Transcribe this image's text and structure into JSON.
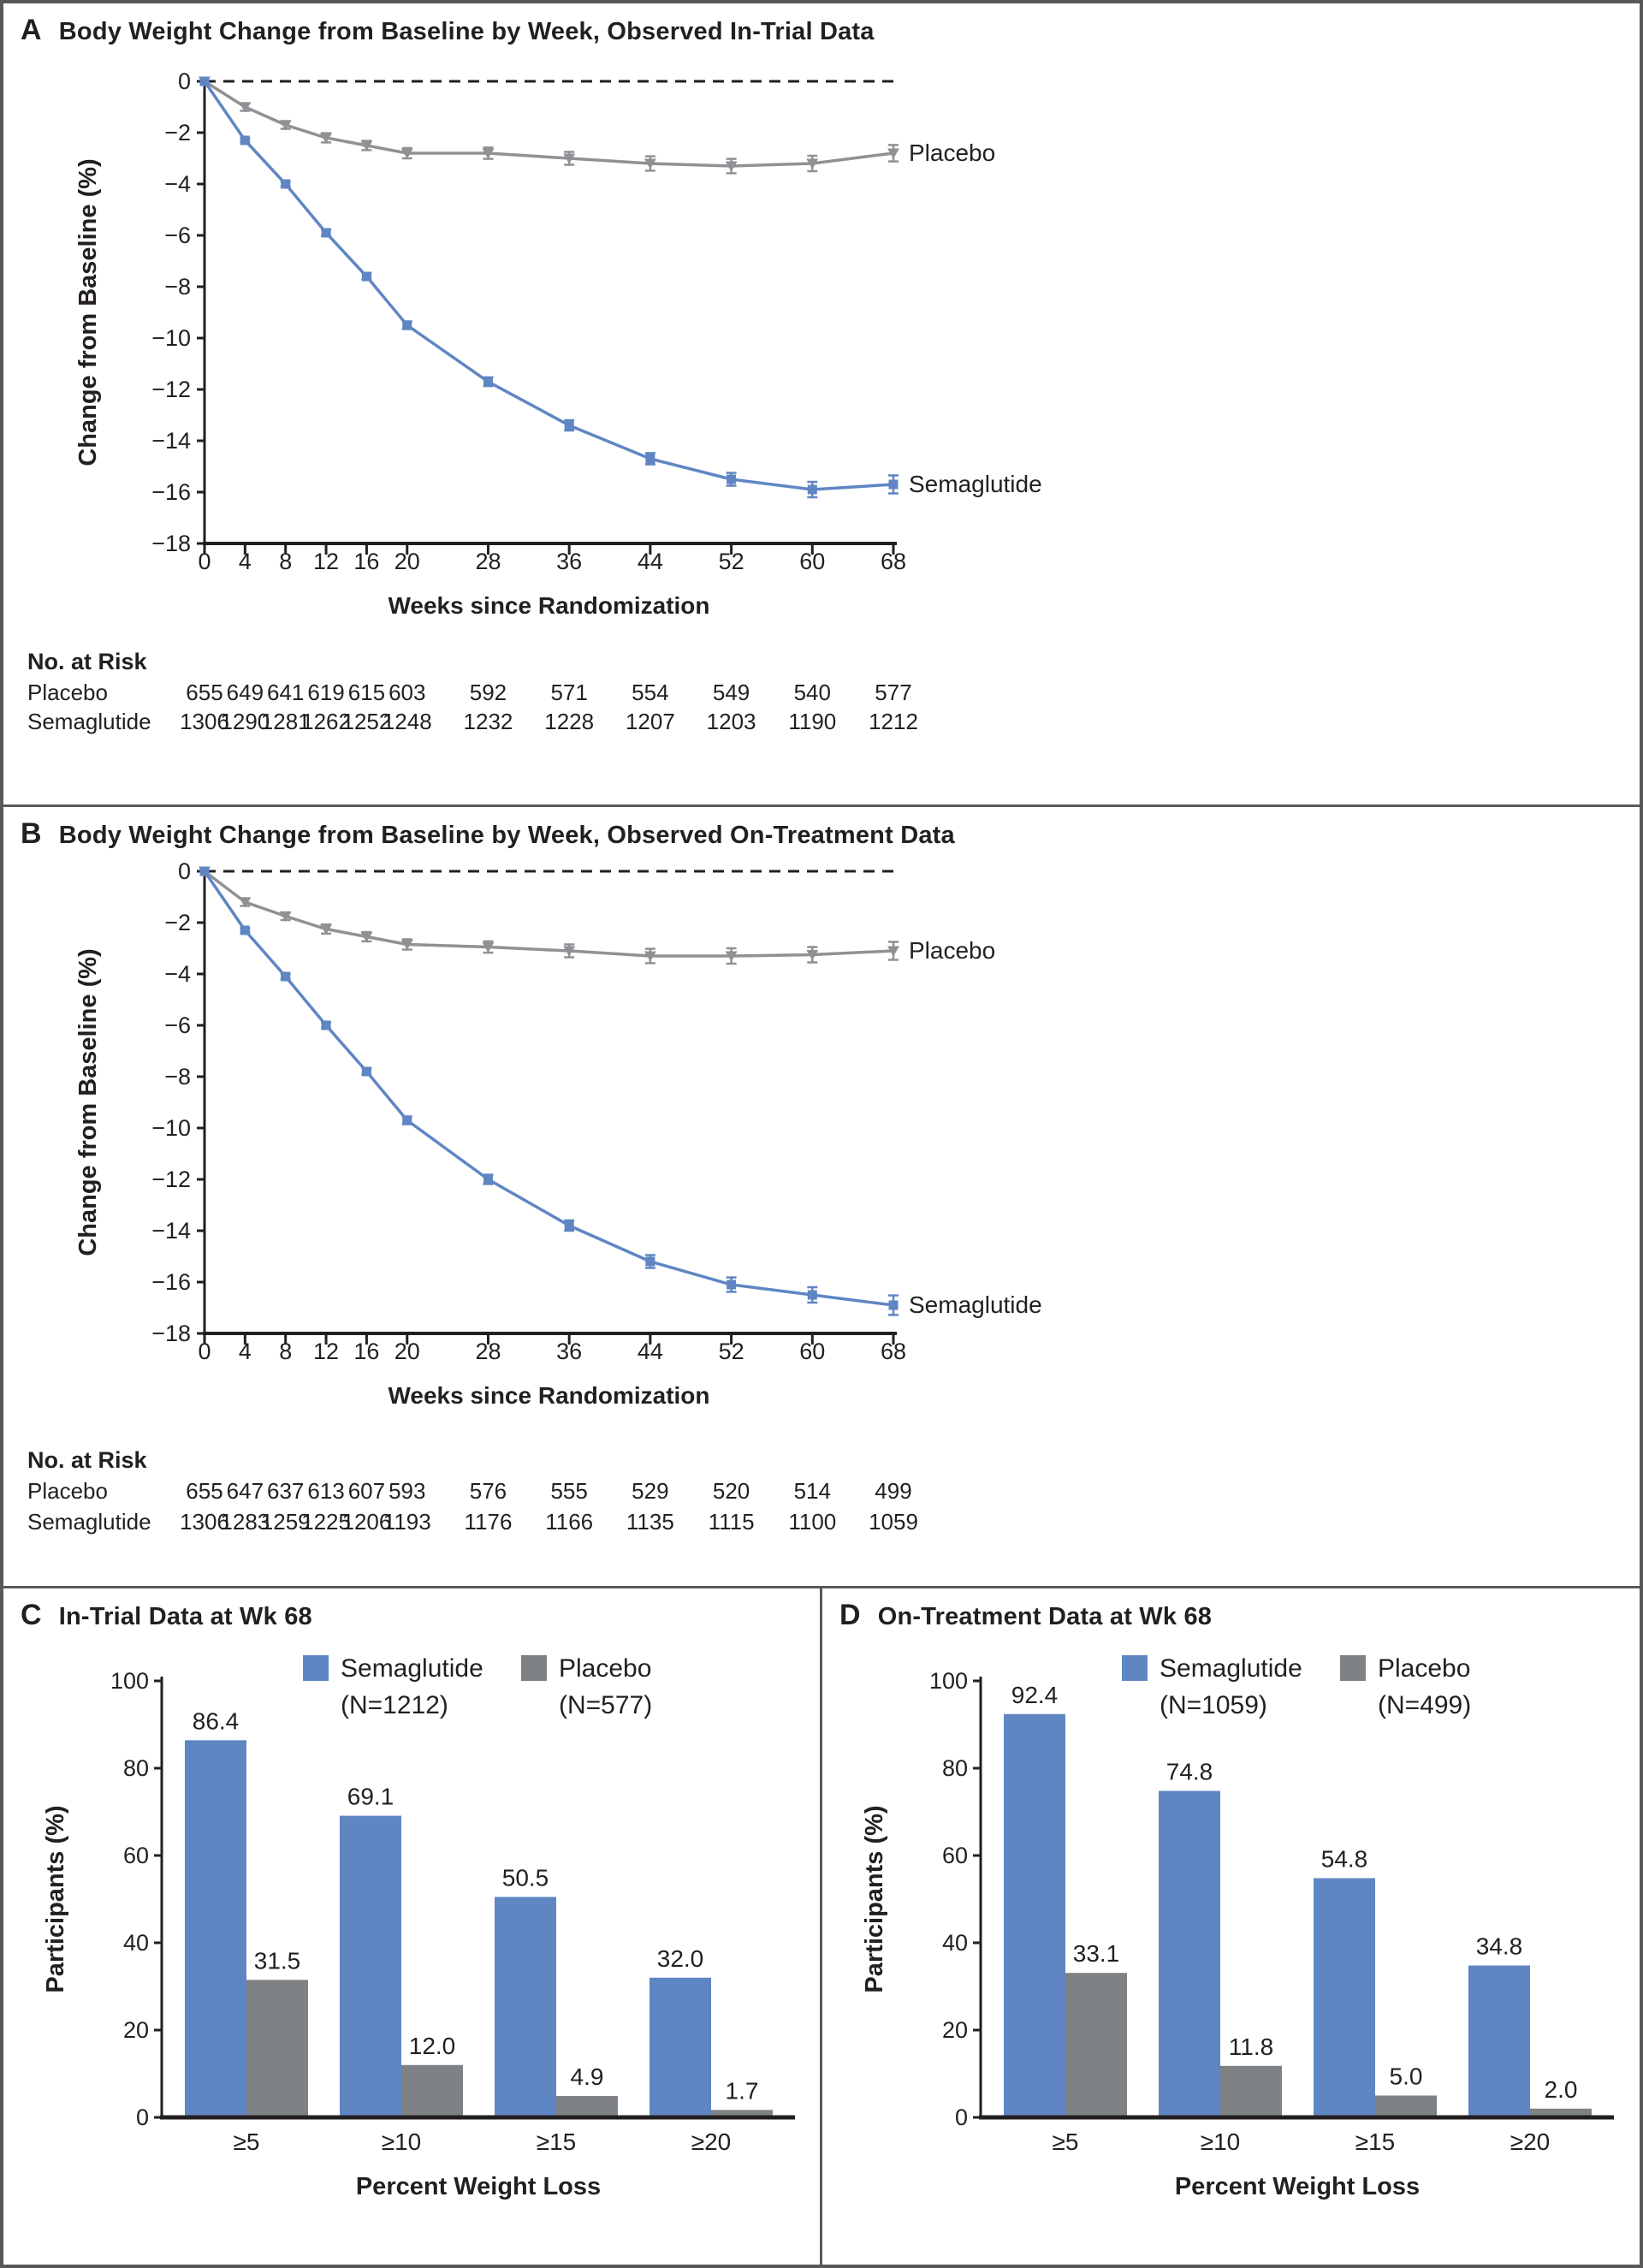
{
  "figure": {
    "panels": {
      "a": {
        "label": "A",
        "title": "Body Weight Change from Baseline by Week, Observed In-Trial Data"
      },
      "b": {
        "label": "B",
        "title": "Body Weight Change from Baseline by Week, Observed On-Treatment Data"
      },
      "c": {
        "label": "C",
        "title": "In-Trial Data at Wk 68"
      },
      "d": {
        "label": "D",
        "title": "On-Treatment Data at Wk 68"
      }
    }
  },
  "colors": {
    "semaglutide": "#5f86c3",
    "placebo_line": "#8f9194",
    "placebo_bar": "#7f8285",
    "text": "#231f20",
    "border": "#58595b",
    "zero_line": "#231f20"
  },
  "chart_data": [
    {
      "type": "line",
      "panel": "A",
      "title": "Body Weight Change from Baseline by Week, Observed In-Trial Data",
      "xlabel": "Weeks since Randomization",
      "ylabel": "Change from Baseline (%)",
      "x": [
        0,
        4,
        8,
        12,
        16,
        20,
        28,
        36,
        44,
        52,
        60,
        68
      ],
      "xtick_labels": [
        "0",
        "4",
        "8",
        "12",
        "16",
        "20",
        "28",
        "36",
        "44",
        "52",
        "60",
        "68"
      ],
      "ylim": [
        -18,
        0
      ],
      "yticks": [
        0,
        -2,
        -4,
        -6,
        -8,
        -10,
        -12,
        -14,
        -16,
        -18
      ],
      "ytick_labels": [
        "0",
        "−2",
        "−4",
        "−6",
        "−8",
        "−10",
        "−12",
        "−14",
        "−16",
        "−18"
      ],
      "zero_reference_line": "dashed",
      "legend_position": "right-of-line-ends",
      "grid": false,
      "series": [
        {
          "name": "Placebo",
          "color_key": "placebo_line",
          "marker": "triangle-down",
          "values": [
            0,
            -1.0,
            -1.7,
            -2.2,
            -2.5,
            -2.8,
            -2.8,
            -3.0,
            -3.2,
            -3.3,
            -3.2,
            -2.8
          ],
          "err": [
            0,
            0.15,
            0.15,
            0.18,
            0.18,
            0.2,
            0.22,
            0.25,
            0.28,
            0.28,
            0.3,
            0.32
          ]
        },
        {
          "name": "Semaglutide",
          "color_key": "semaglutide",
          "marker": "square",
          "values": [
            0,
            -2.3,
            -4.0,
            -5.9,
            -7.6,
            -9.5,
            -11.7,
            -13.4,
            -14.7,
            -15.5,
            -15.9,
            -15.7
          ],
          "err": [
            0,
            0.08,
            0.1,
            0.12,
            0.13,
            0.15,
            0.17,
            0.2,
            0.22,
            0.25,
            0.3,
            0.35
          ]
        }
      ],
      "no_at_risk": {
        "label": "No. at Risk",
        "rows": [
          {
            "name": "Placebo",
            "counts": [
              "655",
              "649",
              "641",
              "619",
              "615",
              "603",
              "592",
              "571",
              "554",
              "549",
              "540",
              "577"
            ]
          },
          {
            "name": "Semaglutide",
            "counts": [
              "1306",
              "1290",
              "1281",
              "1262",
              "1252",
              "1248",
              "1232",
              "1228",
              "1207",
              "1203",
              "1190",
              "1212"
            ]
          }
        ]
      }
    },
    {
      "type": "line",
      "panel": "B",
      "title": "Body Weight Change from Baseline by Week, Observed On-Treatment Data",
      "xlabel": "Weeks since Randomization",
      "ylabel": "Change from Baseline (%)",
      "x": [
        0,
        4,
        8,
        12,
        16,
        20,
        28,
        36,
        44,
        52,
        60,
        68
      ],
      "xtick_labels": [
        "0",
        "4",
        "8",
        "12",
        "16",
        "20",
        "28",
        "36",
        "44",
        "52",
        "60",
        "68"
      ],
      "ylim": [
        -18,
        0
      ],
      "yticks": [
        0,
        -2,
        -4,
        -6,
        -8,
        -10,
        -12,
        -14,
        -16,
        -18
      ],
      "ytick_labels": [
        "0",
        "−2",
        "−4",
        "−6",
        "−8",
        "−10",
        "−12",
        "−14",
        "−16",
        "−18"
      ],
      "zero_reference_line": "dashed",
      "legend_position": "right-of-line-ends",
      "grid": false,
      "series": [
        {
          "name": "Placebo",
          "color_key": "placebo_line",
          "marker": "triangle-down",
          "values": [
            0,
            -1.2,
            -1.75,
            -2.25,
            -2.55,
            -2.85,
            -2.95,
            -3.1,
            -3.3,
            -3.3,
            -3.25,
            -3.1
          ],
          "err": [
            0,
            0.15,
            0.15,
            0.18,
            0.18,
            0.2,
            0.22,
            0.25,
            0.28,
            0.3,
            0.3,
            0.35
          ]
        },
        {
          "name": "Semaglutide",
          "color_key": "semaglutide",
          "marker": "square",
          "values": [
            0,
            -2.3,
            -4.1,
            -6.0,
            -7.8,
            -9.7,
            -12.0,
            -13.8,
            -15.2,
            -16.1,
            -16.5,
            -16.9
          ],
          "err": [
            0,
            0.08,
            0.1,
            0.12,
            0.13,
            0.15,
            0.18,
            0.2,
            0.25,
            0.28,
            0.3,
            0.38
          ]
        }
      ],
      "no_at_risk": {
        "label": "No. at Risk",
        "rows": [
          {
            "name": "Placebo",
            "counts": [
              "655",
              "647",
              "637",
              "613",
              "607",
              "593",
              "576",
              "555",
              "529",
              "520",
              "514",
              "499"
            ]
          },
          {
            "name": "Semaglutide",
            "counts": [
              "1306",
              "1283",
              "1259",
              "1225",
              "1206",
              "1193",
              "1176",
              "1166",
              "1135",
              "1115",
              "1100",
              "1059"
            ]
          }
        ]
      }
    },
    {
      "type": "bar",
      "panel": "C",
      "title": "In-Trial Data at Wk 68",
      "xlabel": "Percent Weight Loss",
      "ylabel": "Participants (%)",
      "categories": [
        "≥5",
        "≥10",
        "≥15",
        "≥20"
      ],
      "ylim": [
        0,
        100
      ],
      "yticks": [
        0,
        20,
        40,
        60,
        80,
        100
      ],
      "ytick_labels": [
        "0",
        "20",
        "40",
        "60",
        "80",
        "100"
      ],
      "legend_position": "top",
      "grid": false,
      "series": [
        {
          "name": "Semaglutide",
          "n_label": "(N=1212)",
          "color_key": "semaglutide",
          "values": [
            86.4,
            69.1,
            50.5,
            32.0
          ],
          "value_labels": [
            "86.4",
            "69.1",
            "50.5",
            "32.0"
          ]
        },
        {
          "name": "Placebo",
          "n_label": "(N=577)",
          "color_key": "placebo_bar",
          "values": [
            31.5,
            12.0,
            4.9,
            1.7
          ],
          "value_labels": [
            "31.5",
            "12.0",
            "4.9",
            "1.7"
          ]
        }
      ]
    },
    {
      "type": "bar",
      "panel": "D",
      "title": "On-Treatment Data at Wk 68",
      "xlabel": "Percent Weight Loss",
      "ylabel": "Participants (%)",
      "categories": [
        "≥5",
        "≥10",
        "≥15",
        "≥20"
      ],
      "ylim": [
        0,
        100
      ],
      "yticks": [
        0,
        20,
        40,
        60,
        80,
        100
      ],
      "ytick_labels": [
        "0",
        "20",
        "40",
        "60",
        "80",
        "100"
      ],
      "legend_position": "top",
      "grid": false,
      "series": [
        {
          "name": "Semaglutide",
          "n_label": "(N=1059)",
          "color_key": "semaglutide",
          "values": [
            92.4,
            74.8,
            54.8,
            34.8
          ],
          "value_labels": [
            "92.4",
            "74.8",
            "54.8",
            "34.8"
          ]
        },
        {
          "name": "Placebo",
          "n_label": "(N=499)",
          "color_key": "placebo_bar",
          "values": [
            33.1,
            11.8,
            5.0,
            2.0
          ],
          "value_labels": [
            "33.1",
            "11.8",
            "5.0",
            "2.0"
          ]
        }
      ]
    }
  ]
}
